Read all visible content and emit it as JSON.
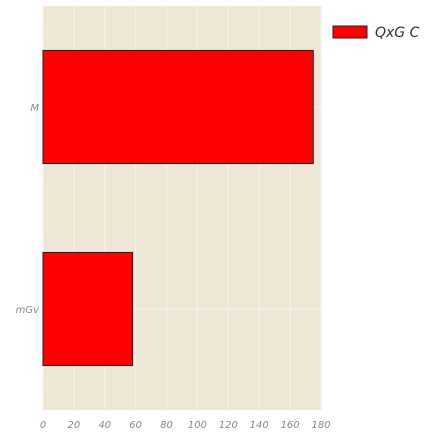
{
  "chart_data": {
    "type": "bar",
    "orientation": "horizontal",
    "categories": [
      "M",
      "mGv"
    ],
    "series": [
      {
        "name": "QxG C",
        "values": [
          175,
          58
        ]
      }
    ],
    "xlim": [
      0,
      180
    ],
    "xticks": [
      0,
      20,
      40,
      60,
      80,
      100,
      120,
      140,
      160,
      180
    ],
    "grid": true,
    "legend_position": "top-right",
    "colors": {
      "bar_fill": "#ff0000",
      "bar_edge": "#222222",
      "plot_background": "#efe7d6",
      "grid": "#f8f3ea"
    }
  }
}
